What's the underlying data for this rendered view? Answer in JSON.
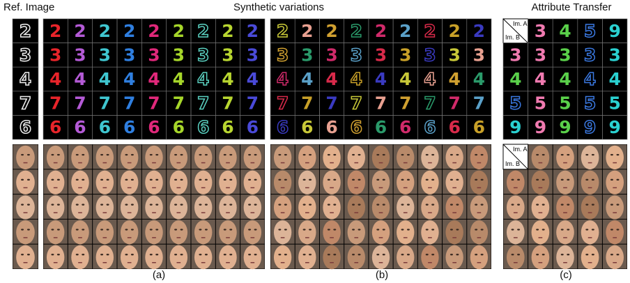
{
  "header": {
    "ref": "Ref. Image",
    "synthetic": "Synthetic variations",
    "transfer": "Attribute Transfer"
  },
  "digits": [
    "2",
    "3",
    "4",
    "7",
    "6"
  ],
  "transfer": {
    "im_a": "Im. A",
    "im_b": "Im. B",
    "top": [
      "3",
      "4",
      "5",
      "9"
    ],
    "left": [
      "3",
      "4",
      "5",
      "9"
    ]
  },
  "captions": [
    "(a)",
    "(b)",
    "(c)"
  ]
}
